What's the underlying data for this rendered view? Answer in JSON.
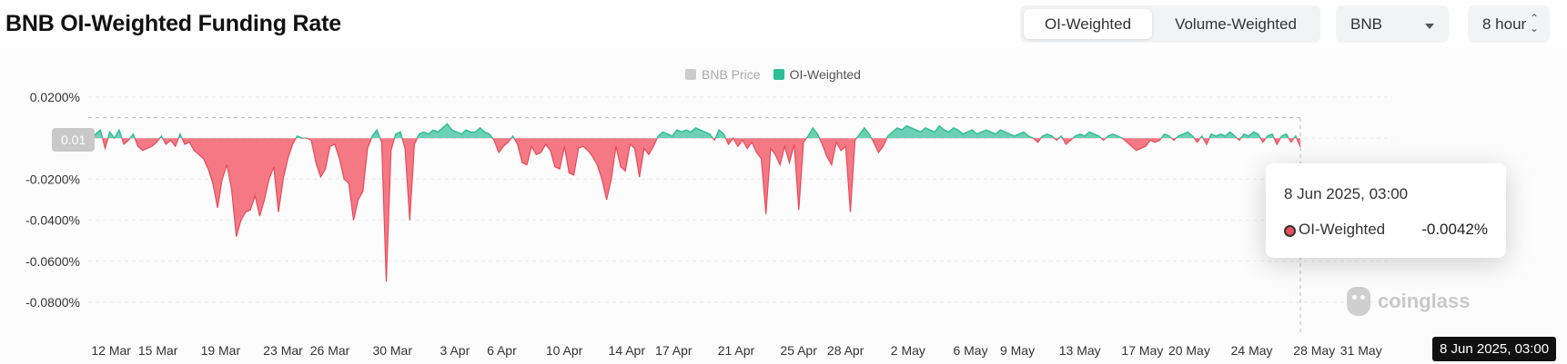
{
  "title": "BNB OI-Weighted Funding Rate",
  "toggle": {
    "options": [
      "OI-Weighted",
      "Volume-Weighted"
    ],
    "active": "OI-Weighted"
  },
  "coin_select": {
    "value": "BNB"
  },
  "interval_select": {
    "value": "8 hour"
  },
  "legend": [
    {
      "label": "BNB Price",
      "color": "#cccccc",
      "enabled": false
    },
    {
      "label": "OI-Weighted",
      "color": "#2ebd95",
      "enabled": true
    }
  ],
  "crosshair": {
    "y_label": "0.01",
    "x_label": "8 Jun 2025, 03:00"
  },
  "tooltip": {
    "date": "8 Jun 2025, 03:00",
    "series": "OI-Weighted",
    "value": "-0.0042%"
  },
  "watermark": "coinglass",
  "colors": {
    "positive": "#2ebd95",
    "negative": "#f2626f",
    "grid": "#e9e9e9"
  },
  "chart_data": {
    "type": "area",
    "title": "BNB OI-Weighted Funding Rate",
    "ylabel": "",
    "ylim": [
      -0.08,
      0.02
    ],
    "y_ticks": [
      {
        "value": 0.02,
        "label": "0.0200%"
      },
      {
        "value": 0,
        "label": "0%"
      },
      {
        "value": -0.02,
        "label": "-0.0200%"
      },
      {
        "value": -0.04,
        "label": "-0.0400%"
      },
      {
        "value": -0.06,
        "label": "-0.0600%"
      },
      {
        "value": -0.08,
        "label": "-0.0800%"
      }
    ],
    "x_ticks": [
      {
        "day": 1,
        "label": "12 Mar"
      },
      {
        "day": 4,
        "label": "15 Mar"
      },
      {
        "day": 8,
        "label": "19 Mar"
      },
      {
        "day": 12,
        "label": "23 Mar"
      },
      {
        "day": 15,
        "label": "26 Mar"
      },
      {
        "day": 19,
        "label": "30 Mar"
      },
      {
        "day": 23,
        "label": "3 Apr"
      },
      {
        "day": 26,
        "label": "6 Apr"
      },
      {
        "day": 30,
        "label": "10 Apr"
      },
      {
        "day": 34,
        "label": "14 Apr"
      },
      {
        "day": 37,
        "label": "17 Apr"
      },
      {
        "day": 41,
        "label": "21 Apr"
      },
      {
        "day": 45,
        "label": "25 Apr"
      },
      {
        "day": 48,
        "label": "28 Apr"
      },
      {
        "day": 52,
        "label": "2 May"
      },
      {
        "day": 56,
        "label": "6 May"
      },
      {
        "day": 59,
        "label": "9 May"
      },
      {
        "day": 63,
        "label": "13 May"
      },
      {
        "day": 67,
        "label": "17 May"
      },
      {
        "day": 70,
        "label": "20 May"
      },
      {
        "day": 74,
        "label": "24 May"
      },
      {
        "day": 78,
        "label": "28 May"
      },
      {
        "day": 81,
        "label": "31 May"
      }
    ],
    "series": [
      {
        "name": "OI-Weighted",
        "points": [
          [
            0.0,
            0
          ],
          [
            0.3,
            0.002
          ],
          [
            0.6,
            0.004
          ],
          [
            0.9,
            -0.005
          ],
          [
            1.2,
            0.003
          ],
          [
            1.5,
            0
          ],
          [
            1.8,
            0.004
          ],
          [
            2.1,
            -0.003
          ],
          [
            2.4,
            -0.001
          ],
          [
            2.7,
            0.002
          ],
          [
            3.0,
            -0.004
          ],
          [
            3.3,
            -0.006
          ],
          [
            3.6,
            -0.005
          ],
          [
            3.9,
            -0.004
          ],
          [
            4.2,
            -0.002
          ],
          [
            4.5,
            0.001
          ],
          [
            4.8,
            -0.003
          ],
          [
            5.1,
            -0.001
          ],
          [
            5.4,
            -0.004
          ],
          [
            5.7,
            0.002
          ],
          [
            6.0,
            -0.003
          ],
          [
            6.3,
            -0.002
          ],
          [
            6.6,
            -0.006
          ],
          [
            6.9,
            -0.008
          ],
          [
            7.2,
            -0.01
          ],
          [
            7.5,
            -0.015
          ],
          [
            7.8,
            -0.022
          ],
          [
            8.1,
            -0.034
          ],
          [
            8.4,
            -0.02
          ],
          [
            8.7,
            -0.013
          ],
          [
            9.0,
            -0.025
          ],
          [
            9.3,
            -0.048
          ],
          [
            9.6,
            -0.04
          ],
          [
            9.9,
            -0.036
          ],
          [
            10.2,
            -0.035
          ],
          [
            10.5,
            -0.028
          ],
          [
            10.8,
            -0.038
          ],
          [
            11.1,
            -0.03
          ],
          [
            11.4,
            -0.02
          ],
          [
            11.7,
            -0.014
          ],
          [
            12.0,
            -0.036
          ],
          [
            12.3,
            -0.02
          ],
          [
            12.6,
            -0.01
          ],
          [
            12.9,
            -0.003
          ],
          [
            13.2,
            0.001
          ],
          [
            13.5,
            0
          ],
          [
            13.8,
            0
          ],
          [
            14.1,
            -0.001
          ],
          [
            14.4,
            -0.012
          ],
          [
            14.7,
            -0.019
          ],
          [
            15.0,
            -0.015
          ],
          [
            15.3,
            -0.004
          ],
          [
            15.6,
            -0.003
          ],
          [
            15.9,
            -0.01
          ],
          [
            16.2,
            -0.02
          ],
          [
            16.5,
            -0.022
          ],
          [
            16.8,
            -0.04
          ],
          [
            17.1,
            -0.03
          ],
          [
            17.4,
            -0.026
          ],
          [
            17.7,
            -0.005
          ],
          [
            18.0,
            0.001
          ],
          [
            18.3,
            0.004
          ],
          [
            18.6,
            -0.002
          ],
          [
            18.9,
            -0.07
          ],
          [
            19.2,
            -0.006
          ],
          [
            19.5,
            0.002
          ],
          [
            19.8,
            0.003
          ],
          [
            20.1,
            -0.005
          ],
          [
            20.4,
            -0.04
          ],
          [
            20.7,
            -0.003
          ],
          [
            21.0,
            0.002
          ],
          [
            21.3,
            0.003
          ],
          [
            21.6,
            0.002
          ],
          [
            21.9,
            0.004
          ],
          [
            22.2,
            0.003
          ],
          [
            22.5,
            0.005
          ],
          [
            22.8,
            0.007
          ],
          [
            23.1,
            0.004
          ],
          [
            23.4,
            0.003
          ],
          [
            23.7,
            0.002
          ],
          [
            24.0,
            0.004
          ],
          [
            24.3,
            0.003
          ],
          [
            24.6,
            0.003
          ],
          [
            24.9,
            0.005
          ],
          [
            25.2,
            0.003
          ],
          [
            25.5,
            0.002
          ],
          [
            25.8,
            -0.001
          ],
          [
            26.1,
            -0.007
          ],
          [
            26.4,
            -0.004
          ],
          [
            26.7,
            -0.002
          ],
          [
            27.0,
            0.001
          ],
          [
            27.3,
            -0.003
          ],
          [
            27.6,
            -0.012
          ],
          [
            27.9,
            -0.013
          ],
          [
            28.2,
            -0.004
          ],
          [
            28.5,
            -0.008
          ],
          [
            28.8,
            -0.007
          ],
          [
            29.1,
            -0.003
          ],
          [
            29.4,
            -0.006
          ],
          [
            29.7,
            -0.014
          ],
          [
            30.0,
            -0.015
          ],
          [
            30.3,
            -0.004
          ],
          [
            30.6,
            -0.017
          ],
          [
            30.9,
            -0.018
          ],
          [
            31.2,
            -0.005
          ],
          [
            31.5,
            -0.004
          ],
          [
            31.8,
            -0.006
          ],
          [
            32.1,
            -0.009
          ],
          [
            32.4,
            -0.013
          ],
          [
            32.7,
            -0.02
          ],
          [
            33.0,
            -0.03
          ],
          [
            33.3,
            -0.02
          ],
          [
            33.6,
            -0.004
          ],
          [
            33.9,
            -0.014
          ],
          [
            34.2,
            -0.016
          ],
          [
            34.5,
            -0.003
          ],
          [
            34.8,
            -0.005
          ],
          [
            35.1,
            -0.019
          ],
          [
            35.4,
            -0.005
          ],
          [
            35.7,
            -0.008
          ],
          [
            36.0,
            -0.004
          ],
          [
            36.3,
            0.001
          ],
          [
            36.6,
            0.003
          ],
          [
            36.9,
            0.002
          ],
          [
            37.2,
            0.001
          ],
          [
            37.5,
            0.004
          ],
          [
            37.8,
            0.003
          ],
          [
            38.1,
            0.004
          ],
          [
            38.4,
            0.003
          ],
          [
            38.7,
            0.005
          ],
          [
            39.0,
            0.004
          ],
          [
            39.3,
            0.003
          ],
          [
            39.6,
            0.002
          ],
          [
            39.9,
            -0.001
          ],
          [
            40.2,
            0.004
          ],
          [
            40.5,
            0.002
          ],
          [
            40.8,
            -0.003
          ],
          [
            41.1,
            0
          ],
          [
            41.4,
            -0.004
          ],
          [
            41.7,
            -0.001
          ],
          [
            42.0,
            -0.005
          ],
          [
            42.3,
            -0.002
          ],
          [
            42.6,
            -0.007
          ],
          [
            42.9,
            -0.01
          ],
          [
            43.2,
            -0.037
          ],
          [
            43.5,
            -0.005
          ],
          [
            43.8,
            -0.008
          ],
          [
            44.1,
            -0.013
          ],
          [
            44.4,
            -0.004
          ],
          [
            44.7,
            -0.012
          ],
          [
            45.0,
            -0.003
          ],
          [
            45.3,
            -0.035
          ],
          [
            45.6,
            -0.002
          ],
          [
            45.9,
            0.001
          ],
          [
            46.2,
            0.005
          ],
          [
            46.5,
            0.002
          ],
          [
            46.8,
            -0.003
          ],
          [
            47.1,
            -0.009
          ],
          [
            47.4,
            -0.013
          ],
          [
            47.7,
            -0.002
          ],
          [
            48.0,
            -0.006
          ],
          [
            48.3,
            -0.004
          ],
          [
            48.6,
            -0.036
          ],
          [
            48.9,
            -0.001
          ],
          [
            49.2,
            0.002
          ],
          [
            49.5,
            0.005
          ],
          [
            49.8,
            0.002
          ],
          [
            50.1,
            -0.002
          ],
          [
            50.4,
            -0.007
          ],
          [
            50.7,
            -0.004
          ],
          [
            51.0,
            0.001
          ],
          [
            51.3,
            0.003
          ],
          [
            51.6,
            0.005
          ],
          [
            51.9,
            0.004
          ],
          [
            52.2,
            0.006
          ],
          [
            52.5,
            0.005
          ],
          [
            52.8,
            0.004
          ],
          [
            53.1,
            0.003
          ],
          [
            53.4,
            0.005
          ],
          [
            53.7,
            0.004
          ],
          [
            54.0,
            0.003
          ],
          [
            54.3,
            0.006
          ],
          [
            54.6,
            0.004
          ],
          [
            54.9,
            0.003
          ],
          [
            55.2,
            0.005
          ],
          [
            55.5,
            0.004
          ],
          [
            55.8,
            0.002
          ],
          [
            56.1,
            0.003
          ],
          [
            56.4,
            0.004
          ],
          [
            56.7,
            0.002
          ],
          [
            57.0,
            0.003
          ],
          [
            57.3,
            0.004
          ],
          [
            57.6,
            0.003
          ],
          [
            57.9,
            0.002
          ],
          [
            58.2,
            0.004
          ],
          [
            58.5,
            0.003
          ],
          [
            58.8,
            0.002
          ],
          [
            59.1,
            0.001
          ],
          [
            59.4,
            0.002
          ],
          [
            59.7,
            0.003
          ],
          [
            60.0,
            0.001
          ],
          [
            60.3,
            0
          ],
          [
            60.6,
            -0.002
          ],
          [
            60.9,
            0.001
          ],
          [
            61.2,
            0.002
          ],
          [
            61.5,
            0.001
          ],
          [
            61.8,
            -0.001
          ],
          [
            62.1,
            0.001
          ],
          [
            62.4,
            -0.003
          ],
          [
            62.7,
            -0.001
          ],
          [
            63.0,
            0.001
          ],
          [
            63.3,
            0.002
          ],
          [
            63.6,
            0.001
          ],
          [
            63.9,
            0.003
          ],
          [
            64.2,
            0.002
          ],
          [
            64.5,
            0.001
          ],
          [
            64.8,
            -0.001
          ],
          [
            65.1,
            0.001
          ],
          [
            65.4,
            0.002
          ],
          [
            65.7,
            0.001
          ],
          [
            66.0,
            0
          ],
          [
            66.3,
            -0.002
          ],
          [
            66.6,
            -0.004
          ],
          [
            66.9,
            -0.006
          ],
          [
            67.2,
            -0.005
          ],
          [
            67.5,
            -0.004
          ],
          [
            67.8,
            -0.001
          ],
          [
            68.1,
            -0.002
          ],
          [
            68.4,
            -0.001
          ],
          [
            68.7,
            0.002
          ],
          [
            69.0,
            0.001
          ],
          [
            69.3,
            -0.001
          ],
          [
            69.6,
            0.001
          ],
          [
            69.9,
            0.002
          ],
          [
            70.2,
            0.003
          ],
          [
            70.5,
            0.001
          ],
          [
            70.8,
            -0.002
          ],
          [
            71.1,
            0.001
          ],
          [
            71.4,
            -0.003
          ],
          [
            71.7,
            0.002
          ],
          [
            72.0,
            0.001
          ],
          [
            72.3,
            0.002
          ],
          [
            72.6,
            0.001
          ],
          [
            72.9,
            0.003
          ],
          [
            73.2,
            0.001
          ],
          [
            73.5,
            -0.001
          ],
          [
            73.8,
            0.002
          ],
          [
            74.1,
            0.001
          ],
          [
            74.4,
            0.003
          ],
          [
            74.7,
            0.002
          ],
          [
            75.0,
            -0.002
          ],
          [
            75.3,
            0.001
          ],
          [
            75.6,
            0.002
          ],
          [
            75.9,
            -0.003
          ],
          [
            76.2,
            0.001
          ],
          [
            76.5,
            0.002
          ],
          [
            76.8,
            -0.002
          ],
          [
            77.1,
            0.001
          ],
          [
            77.4,
            -0.0042
          ]
        ]
      }
    ]
  }
}
